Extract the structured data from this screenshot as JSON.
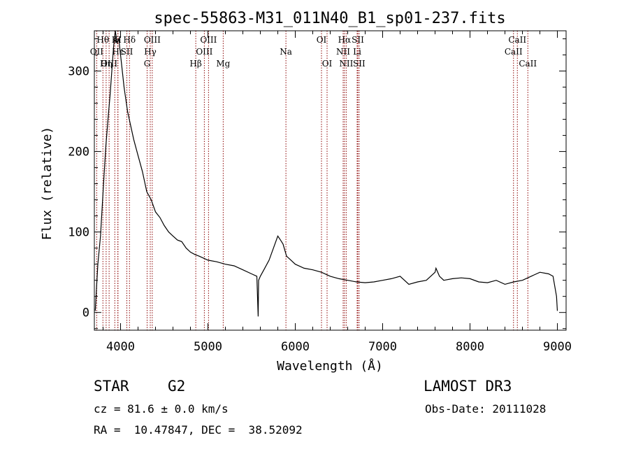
{
  "chart_data": {
    "type": "line",
    "title": "spec-55863-M31_011N40_B1_sp01-237.fits",
    "xlabel": "Wavelength (Å)",
    "ylabel": "Flux (relative)",
    "xlim": [
      3700,
      9100
    ],
    "ylim": [
      -22,
      350
    ],
    "xticks": [
      4000,
      5000,
      6000,
      7000,
      8000,
      9000
    ],
    "yticks": [
      0,
      100,
      200,
      300
    ],
    "line_color": "#000000",
    "marker_color": "#8b0000",
    "spectrum": {
      "x": [
        3710,
        3740,
        3770,
        3800,
        3830,
        3860,
        3880,
        3900,
        3920,
        3940,
        3960,
        3980,
        4000,
        4020,
        4040,
        4060,
        4080,
        4100,
        4150,
        4200,
        4250,
        4300,
        4350,
        4400,
        4450,
        4500,
        4550,
        4600,
        4650,
        4700,
        4750,
        4800,
        4850,
        4900,
        5000,
        5100,
        5200,
        5300,
        5400,
        5500,
        5560,
        5575,
        5580,
        5600,
        5650,
        5700,
        5750,
        5800,
        5830,
        5860,
        5900,
        5950,
        6000,
        6100,
        6200,
        6300,
        6400,
        6500,
        6600,
        6700,
        6800,
        6900,
        7000,
        7100,
        7200,
        7300,
        7400,
        7500,
        7600,
        7610,
        7650,
        7700,
        7800,
        7900,
        8000,
        8100,
        8200,
        8300,
        8400,
        8500,
        8600,
        8700,
        8800,
        8900,
        8950,
        8990,
        9000
      ],
      "y": [
        2,
        60,
        95,
        150,
        205,
        245,
        270,
        300,
        330,
        350,
        335,
        340,
        320,
        300,
        280,
        265,
        250,
        240,
        215,
        195,
        175,
        150,
        140,
        125,
        118,
        108,
        100,
        95,
        90,
        88,
        80,
        75,
        72,
        70,
        65,
        63,
        60,
        58,
        53,
        48,
        45,
        -5,
        40,
        45,
        55,
        65,
        80,
        95,
        90,
        85,
        70,
        65,
        60,
        55,
        53,
        50,
        45,
        42,
        40,
        38,
        37,
        38,
        40,
        42,
        45,
        35,
        38,
        40,
        50,
        55,
        45,
        40,
        42,
        43,
        42,
        38,
        37,
        40,
        35,
        38,
        40,
        45,
        50,
        48,
        45,
        20,
        2
      ]
    },
    "lines": [
      {
        "label": "Hθ",
        "wave": 3798,
        "row": 1
      },
      {
        "label": "OII",
        "wave": 3727,
        "row": 2
      },
      {
        "label": "OIII",
        "wave": 3869,
        "row": 3
      },
      {
        "label": "Hη",
        "wave": 3835,
        "row": 3
      },
      {
        "label": "K",
        "wave": 3934,
        "row": 1
      },
      {
        "label": "H",
        "wave": 3969,
        "row": 1
      },
      {
        "label": "Hε",
        "wave": 3970,
        "row": 2
      },
      {
        "label": "Hδ",
        "wave": 4102,
        "row": 1
      },
      {
        "label": "SII",
        "wave": 4072,
        "row": 2
      },
      {
        "label": "OIII",
        "wave": 4363,
        "row": 1
      },
      {
        "label": "Hγ",
        "wave": 4340,
        "row": 2
      },
      {
        "label": "G",
        "wave": 4304,
        "row": 3
      },
      {
        "label": "Hβ",
        "wave": 4861,
        "row": 3
      },
      {
        "label": "OIII",
        "wave": 5007,
        "row": 1
      },
      {
        "label": "OIII",
        "wave": 4959,
        "row": 2
      },
      {
        "label": "Mg",
        "wave": 5175,
        "row": 3
      },
      {
        "label": "Na",
        "wave": 5893,
        "row": 2
      },
      {
        "label": "OI",
        "wave": 6300,
        "row": 1
      },
      {
        "label": "OI",
        "wave": 6364,
        "row": 3
      },
      {
        "label": "Hα",
        "wave": 6563,
        "row": 1
      },
      {
        "label": "NII",
        "wave": 6548,
        "row": 2
      },
      {
        "label": "NII",
        "wave": 6583,
        "row": 3
      },
      {
        "label": "SII",
        "wave": 6716,
        "row": 1
      },
      {
        "label": "Li",
        "wave": 6708,
        "row": 2
      },
      {
        "label": "SII",
        "wave": 6731,
        "row": 3
      },
      {
        "label": "CaII",
        "wave": 8542,
        "row": 1
      },
      {
        "label": "CaII",
        "wave": 8498,
        "row": 2
      },
      {
        "label": "CaII",
        "wave": 8662,
        "row": 3
      }
    ]
  },
  "info": {
    "class": "STAR",
    "subclass": "G2",
    "survey": "LAMOST DR3",
    "cz": "cz = 81.6 ± 0.0 km/s",
    "obs_date": "Obs-Date: 20111028",
    "coords": "RA =  10.47847, DEC =  38.52092"
  }
}
